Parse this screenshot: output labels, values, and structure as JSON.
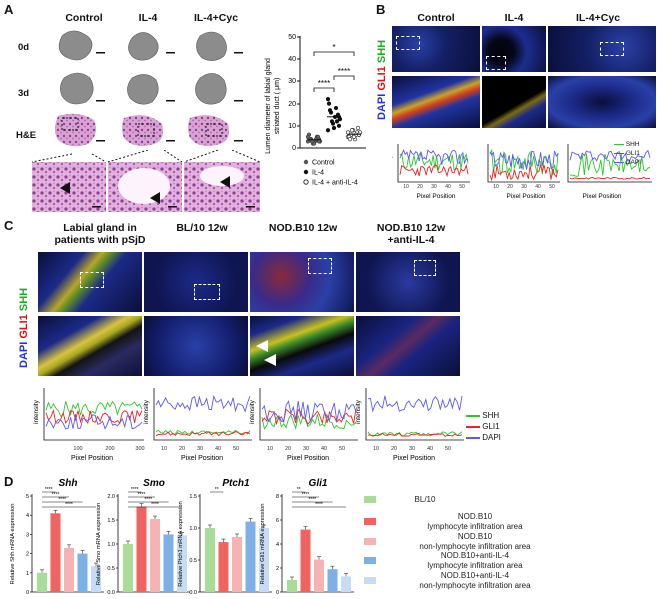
{
  "panels": {
    "A": "A",
    "B": "B",
    "C": "C",
    "D": "D"
  },
  "panelA": {
    "col_headers": [
      "Control",
      "IL-4",
      "IL-4+Cyc"
    ],
    "row_labels": [
      "0d",
      "3d",
      "H&E"
    ],
    "chart": {
      "ylabel_line1": "Lumen diameter of labial gland",
      "ylabel_line2": "striated duct ( μm)",
      "yticks": [
        "0",
        "10",
        "20",
        "30",
        "40",
        "50"
      ],
      "legend": [
        "Control",
        "IL-4",
        "IL-4 + anti-IL-4"
      ],
      "sig": [
        "*",
        "****",
        "****"
      ]
    }
  },
  "panelB": {
    "col_headers": [
      "Control",
      "IL-4",
      "IL-4+Cyc"
    ],
    "stain_labels": {
      "dapi": "DAPI",
      "gli1": "GLI1",
      "shh": "SHH"
    },
    "ylabel": "intensity",
    "xlabel": "Pixel Position",
    "xticks": [
      "10",
      "20",
      "30",
      "40",
      "50"
    ],
    "legend": [
      "SHH",
      "GLI1",
      "DAPI"
    ]
  },
  "panelC": {
    "col_headers": [
      "Labial gland in\npatients with pSjD",
      "BL/10 12w",
      "NOD.B10 12w",
      "NOD.B10 12w\n+anti-IL-4"
    ],
    "stain_labels": {
      "dapi": "DAPI",
      "gli1": "GLI1",
      "shh": "SHH"
    },
    "ylabel": "intensity",
    "xlabel": "Pixel Position",
    "xticks_first": [
      "100",
      "200",
      "300"
    ],
    "xticks": [
      "10",
      "20",
      "30",
      "40",
      "50"
    ],
    "legend": [
      "SHH",
      "GLI1",
      "DAPI"
    ]
  },
  "panelD": {
    "legend": [
      "BL/10",
      "NOD.B10\nlymphocyte infiltration area",
      "NOD.B10\nnon-lymphocyte infiltration area",
      "NOD.B10+anti-IL-4\nlymphocyte infiltration area",
      "NOD.B10+anti-IL-4\nnon-lymphocyte infiltration area"
    ],
    "colors": {
      "c1": "#a9dd97",
      "c2": "#ef6461",
      "c3": "#f6b3b1",
      "c4": "#7eb0e8",
      "c5": "#c6dcf4"
    },
    "sig_shh": [
      "****",
      "****",
      "****",
      "****"
    ],
    "sig_smo": [
      "****",
      "****",
      "****",
      "****"
    ],
    "sig_ptch": [
      "**"
    ],
    "sig_gli": [
      "**",
      "****",
      "****",
      "****"
    ]
  },
  "chart_data": [
    {
      "type": "scatter",
      "title": "",
      "ylabel": "Lumen diameter of labial gland striated duct ( μm)",
      "ylim": [
        0,
        50
      ],
      "series": [
        {
          "name": "Control",
          "values": [
            3,
            4,
            5,
            3,
            2,
            4,
            6,
            3,
            5,
            4,
            2,
            3,
            4,
            5,
            3
          ]
        },
        {
          "name": "IL-4",
          "values": [
            8,
            10,
            12,
            14,
            11,
            16,
            20,
            13,
            15,
            18,
            9,
            12,
            17,
            22,
            14
          ]
        },
        {
          "name": "IL-4 + anti-IL-4",
          "values": [
            5,
            6,
            7,
            4,
            8,
            6,
            5,
            7,
            9,
            6,
            5,
            8,
            4,
            7,
            6
          ]
        }
      ]
    },
    {
      "type": "bar",
      "ylabel": "Relative Shh mRNA expression",
      "ylim": [
        0,
        5
      ],
      "categories": [
        "BL/10",
        "NOD.B10 lymphocyte infiltration area",
        "NOD.B10 non-lymphocyte infiltration area",
        "NOD.B10+anti-IL-4 lymphocyte infiltration area",
        "NOD.B10+anti-IL-4 non-lymphocyte infiltration area"
      ],
      "values": [
        1.0,
        4.1,
        2.3,
        2.0,
        1.35
      ]
    },
    {
      "type": "bar",
      "ylabel": "Relative Smo mRNA expression",
      "ylim": [
        0,
        2.0
      ],
      "categories": [
        "BL/10",
        "NOD.B10 lymphocyte infiltration area",
        "NOD.B10 non-lymphocyte infiltration area",
        "NOD.B10+anti-IL-4 lymphocyte infiltration area",
        "NOD.B10+anti-IL-4 non-lymphocyte infiltration area"
      ],
      "values": [
        1.0,
        1.78,
        1.52,
        1.2,
        1.18
      ]
    },
    {
      "type": "bar",
      "ylabel": "Relative Ptch1 mRNA expression",
      "ylim": [
        0,
        1.5
      ],
      "categories": [
        "BL/10",
        "NOD.B10 lymphocyte infiltration area",
        "NOD.B10 non-lymphocyte infiltration area",
        "NOD.B10+anti-IL-4 lymphocyte infiltration area",
        "NOD.B10+anti-IL-4 non-lymphocyte infiltration area"
      ],
      "values": [
        1.0,
        0.78,
        0.86,
        1.1,
        1.0
      ]
    },
    {
      "type": "bar",
      "ylabel": "Relative Gli1 mRNA expression",
      "ylim": [
        0,
        8
      ],
      "categories": [
        "BL/10",
        "NOD.B10 lymphocyte infiltration area",
        "NOD.B10 non-lymphocyte infiltration area",
        "NOD.B10+anti-IL-4 lymphocyte infiltration area",
        "NOD.B10+anti-IL-4 non-lymphocyte infiltration area"
      ],
      "values": [
        1.0,
        5.2,
        2.7,
        1.9,
        1.3
      ]
    }
  ]
}
